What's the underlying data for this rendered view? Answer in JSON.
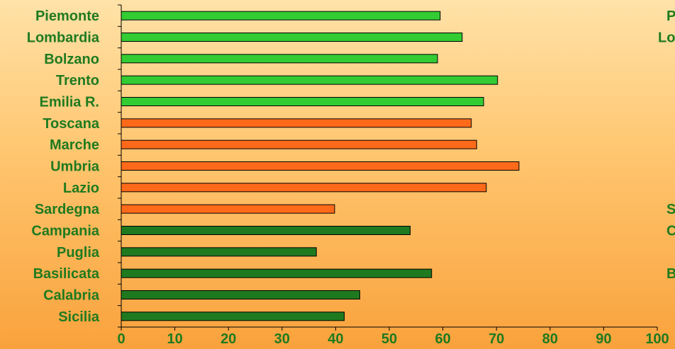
{
  "chart_data": {
    "type": "bar",
    "orientation": "horizontal",
    "categories": [
      "Piemonte",
      "Lombardia",
      "Bolzano",
      "Trento",
      "Emilia R.",
      "Toscana",
      "Marche",
      "Umbria",
      "Lazio",
      "Sardegna",
      "Campania",
      "Puglia",
      "Basilicata",
      "Calabria",
      "Sicilia"
    ],
    "values": [
      59.5,
      63.6,
      59,
      70.2,
      67.6,
      65.3,
      66.3,
      74.2,
      68.1,
      39.8,
      53.9,
      36.4,
      57.9,
      44.5,
      41.6
    ],
    "colors": [
      "#33cc33",
      "#33cc33",
      "#33cc33",
      "#33cc33",
      "#33cc33",
      "#ff6a1a",
      "#ff6a1a",
      "#ff6a1a",
      "#ff6a1a",
      "#ff6a1a",
      "#1f7a1f",
      "#1f7a1f",
      "#1f7a1f",
      "#1f7a1f",
      "#1f7a1f"
    ],
    "xlim": [
      0,
      100
    ],
    "xticks": [
      0,
      10,
      20,
      30,
      40,
      50,
      60,
      70,
      80,
      90,
      100
    ],
    "label_color": "#1f7a1f",
    "grid": false,
    "title": "",
    "xlabel": "",
    "ylabel": ""
  },
  "clipped_duplicate_chart": {
    "visible_labels": [
      "P",
      "Lo",
      "S",
      "C",
      "B"
    ]
  }
}
